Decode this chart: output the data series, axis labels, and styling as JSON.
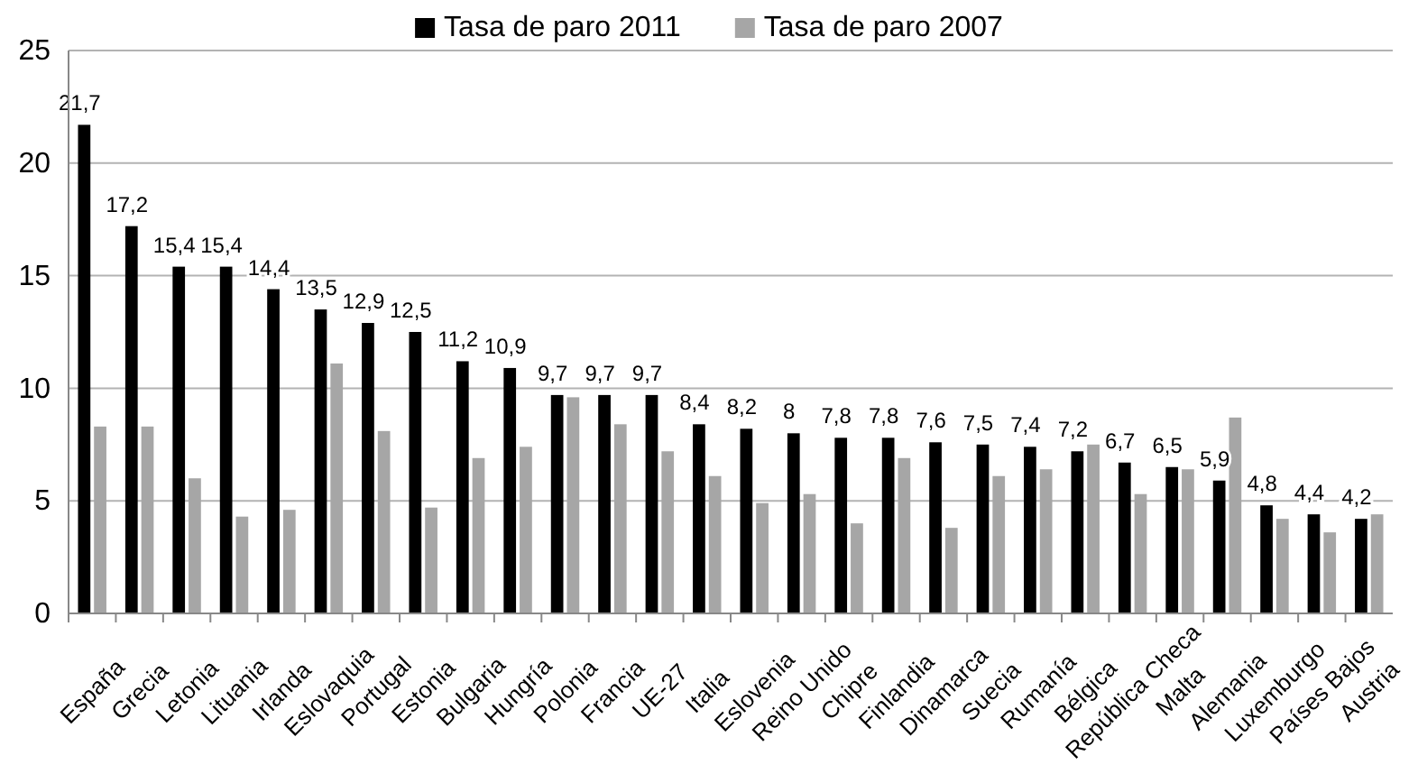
{
  "chart_data": {
    "type": "bar",
    "categories": [
      "España",
      "Grecia",
      "Letonia",
      "Lituania",
      "Irlanda",
      "Eslovaquia",
      "Portugal",
      "Estonia",
      "Bulgaria",
      "Hungría",
      "Polonia",
      "Francia",
      "UE-27",
      "Italia",
      "Eslovenia",
      "Reino Unido",
      "Chipre",
      "Finlandia",
      "Dinamarca",
      "Suecia",
      "Rumanía",
      "Bélgica",
      "República Checa",
      "Malta",
      "Alemania",
      "Luxemburgo",
      "Países Bajos",
      "Austria"
    ],
    "series": [
      {
        "name": "Tasa de paro 2011",
        "color": "#000000",
        "values": [
          21.7,
          17.2,
          15.4,
          15.4,
          14.4,
          13.5,
          12.9,
          12.5,
          11.2,
          10.9,
          9.7,
          9.7,
          9.7,
          8.4,
          8.2,
          8,
          7.8,
          7.8,
          7.6,
          7.5,
          7.4,
          7.2,
          6.7,
          6.5,
          5.9,
          4.8,
          4.4,
          4.2
        ],
        "value_labels": [
          "21,7",
          "17,2",
          "15,4",
          "15,4",
          "14,4",
          "13,5",
          "12,9",
          "12,5",
          "11,2",
          "10,9",
          "9,7",
          "9,7",
          "9,7",
          "8,4",
          "8,2",
          "8",
          "7,8",
          "7,8",
          "7,6",
          "7,5",
          "7,4",
          "7,2",
          "6,7",
          "6,5",
          "5,9",
          "4,8",
          "4,4",
          "4,2"
        ]
      },
      {
        "name": "Tasa de paro 2007",
        "color": "#a6a6a6",
        "values": [
          8.3,
          8.3,
          6.0,
          4.3,
          4.6,
          11.1,
          8.1,
          4.7,
          6.9,
          7.4,
          9.6,
          8.4,
          7.2,
          6.1,
          4.9,
          5.3,
          4.0,
          6.9,
          3.8,
          6.1,
          6.4,
          7.5,
          5.3,
          6.4,
          8.7,
          4.2,
          3.6,
          4.4
        ]
      }
    ],
    "ylim": [
      0,
      25
    ],
    "yticks": [
      0,
      5,
      10,
      15,
      20,
      25
    ],
    "grid": "y",
    "legend": "top"
  }
}
